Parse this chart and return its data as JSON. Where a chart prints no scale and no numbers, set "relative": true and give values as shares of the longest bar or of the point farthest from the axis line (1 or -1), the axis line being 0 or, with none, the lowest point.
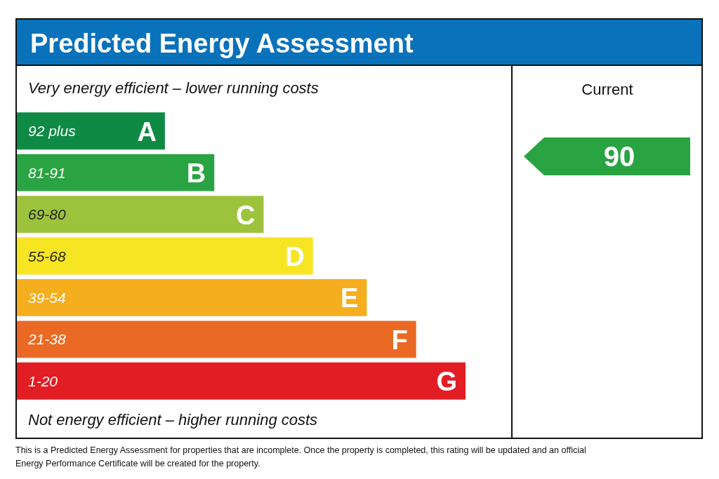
{
  "chart_data": {
    "type": "bar",
    "orientation": "horizontal",
    "relative": true,
    "title": "Predicted Energy Assessment",
    "categories": [
      "92 plus",
      "81-91",
      "69-80",
      "55-68",
      "39-54",
      "21-38",
      "1-20"
    ],
    "values": [
      0.33,
      0.44,
      0.55,
      0.66,
      0.78,
      0.89,
      1
    ],
    "colors": [
      "#0f8a45",
      "#2aa443",
      "#9dc33c",
      "#f7e524",
      "#f5ae1e",
      "#ea6a25",
      "#e31d24"
    ],
    "annotations": [
      "Very energy efficient – lower running costs",
      "Not energy efficient – higher running costs",
      "Current",
      "90",
      "This is a Predicted Energy Assessment for properties that are incomplete. Once the property is completed, this rating will be updated and an official Energy Performance Certificate will be created for the property.",
      {
        "text": "A",
        "x": 0.33,
        "y": "92 plus"
      },
      {
        "text": "B",
        "x": 0.44,
        "y": "81-91"
      },
      {
        "text": "C",
        "x": 0.55,
        "y": "69-80"
      },
      {
        "text": "D",
        "x": 0.66,
        "y": "55-68"
      },
      {
        "text": "E",
        "x": 0.78,
        "y": "39-54"
      },
      {
        "text": "F",
        "x": 0.89,
        "y": "21-38"
      },
      {
        "text": "G",
        "x": 1,
        "y": "1-20"
      }
    ]
  }
}
